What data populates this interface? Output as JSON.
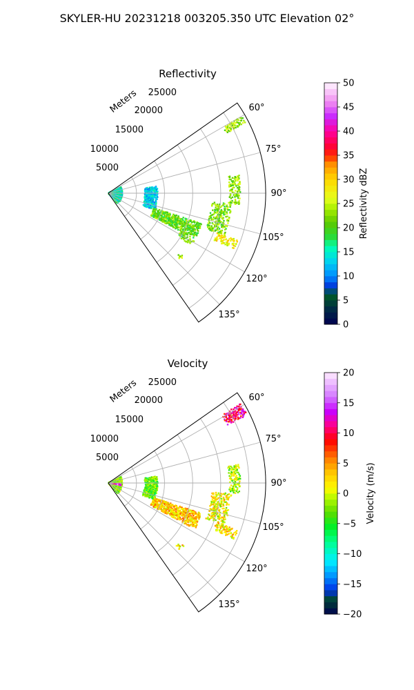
{
  "suptitle": "SKYLER-HU  20231218  003205.350 UTC Elevation 02°",
  "chart_data": [
    {
      "type": "ppi-sector",
      "title": "Reflectivity",
      "radial_label": "Meters",
      "range_ticks": [
        "5000",
        "10000",
        "15000",
        "20000",
        "25000"
      ],
      "range_values": [
        5000,
        10000,
        15000,
        20000,
        25000
      ],
      "range_max": 28000,
      "azimuth_range": [
        55,
        145
      ],
      "azimuth_ticks": [
        "60°",
        "75°",
        "90°",
        "105°",
        "120°",
        "135°"
      ],
      "azimuth_values": [
        60,
        75,
        90,
        105,
        120,
        135
      ],
      "grid": true,
      "colorbar": {
        "label": "Reflectivity dBZ",
        "min": 0,
        "max": 50,
        "ticks": [
          "0",
          "5",
          "10",
          "15",
          "20",
          "25",
          "30",
          "35",
          "40",
          "45",
          "50"
        ],
        "tick_values": [
          0,
          5,
          10,
          15,
          20,
          25,
          30,
          35,
          40,
          45,
          50
        ]
      },
      "echoes": [
        {
          "az": [
            60,
            63
          ],
          "r": [
            23500,
            27500
          ],
          "value": 24,
          "density": 0.6
        },
        {
          "az": [
            82,
            110
          ],
          "r": [
            6500,
            8800
          ],
          "value": 13,
          "density": 0.55
        },
        {
          "az": [
            62,
            138
          ],
          "r": [
            100,
            2500
          ],
          "value": 15,
          "density": 0.5
        },
        {
          "az": [
            108,
            118
          ],
          "r": [
            8500,
            17500
          ],
          "value": 21,
          "density": 0.55
        },
        {
          "az": [
            95,
            110
          ],
          "r": [
            18500,
            22000
          ],
          "value": 22,
          "density": 0.45
        },
        {
          "az": [
            82,
            95
          ],
          "r": [
            21500,
            23500
          ],
          "value": 23,
          "density": 0.45
        },
        {
          "az": [
            110,
            114
          ],
          "r": [
            20500,
            24500
          ],
          "value": 28,
          "density": 0.5
        },
        {
          "az": [
            118,
            122
          ],
          "r": [
            14500,
            17500
          ],
          "value": 21,
          "density": 0.3
        },
        {
          "az": [
            130,
            133
          ],
          "r": [
            16500,
            17500
          ],
          "value": 23,
          "density": 0.4
        }
      ]
    },
    {
      "type": "ppi-sector",
      "title": "Velocity",
      "radial_label": "Meters",
      "range_ticks": [
        "5000",
        "10000",
        "15000",
        "20000",
        "25000"
      ],
      "range_values": [
        5000,
        10000,
        15000,
        20000,
        25000
      ],
      "range_max": 28000,
      "azimuth_range": [
        55,
        145
      ],
      "azimuth_ticks": [
        "60°",
        "75°",
        "90°",
        "105°",
        "120°",
        "135°"
      ],
      "azimuth_values": [
        60,
        75,
        90,
        105,
        120,
        135
      ],
      "grid": true,
      "colorbar": {
        "label": "Velocity (m/s)",
        "min": -20,
        "max": 20,
        "ticks": [
          "−20",
          "−15",
          "−10",
          "−5",
          "0",
          "5",
          "10",
          "15",
          "20"
        ],
        "tick_values": [
          -20,
          -15,
          -10,
          -5,
          0,
          5,
          10,
          15,
          20
        ]
      },
      "echoes": [
        {
          "az": [
            59,
            64
          ],
          "r": [
            23500,
            27500
          ],
          "value": 11,
          "density": 0.6
        },
        {
          "az": [
            82,
            110
          ],
          "r": [
            6500,
            8800
          ],
          "value": -3,
          "density": 0.55
        },
        {
          "az": [
            62,
            138
          ],
          "r": [
            100,
            2500
          ],
          "value": -2,
          "density": 0.5
        },
        {
          "az": [
            96,
            100
          ],
          "r": [
            300,
            2300
          ],
          "value": 14,
          "density": 0.8
        },
        {
          "az": [
            108,
            118
          ],
          "r": [
            8500,
            17500
          ],
          "value": 3,
          "density": 0.55
        },
        {
          "az": [
            95,
            110
          ],
          "r": [
            18500,
            22000
          ],
          "value": 1,
          "density": 0.45
        },
        {
          "az": [
            82,
            95
          ],
          "r": [
            21500,
            23500
          ],
          "value": -1,
          "density": 0.45
        },
        {
          "az": [
            110,
            114
          ],
          "r": [
            20500,
            24500
          ],
          "value": 2,
          "density": 0.5
        },
        {
          "az": [
            130,
            133
          ],
          "r": [
            16500,
            17500
          ],
          "value": 2,
          "density": 0.4
        }
      ]
    }
  ]
}
